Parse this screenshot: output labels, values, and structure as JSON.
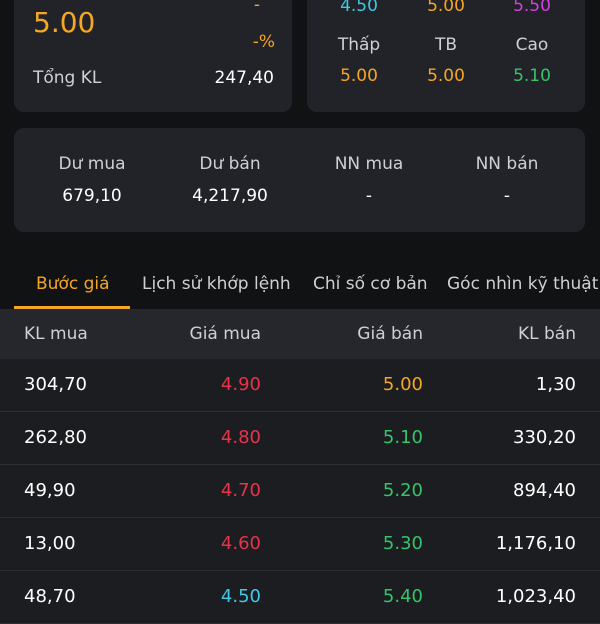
{
  "price_card": {
    "price": "5.00",
    "change": "-",
    "change_pct": "-%",
    "volume_label": "Tổng KL",
    "volume": "247,40"
  },
  "range_card": {
    "top_values": [
      "4.50",
      "5.00",
      "5.50"
    ],
    "labels": [
      "Thấp",
      "TB",
      "Cao"
    ],
    "values": [
      "5.00",
      "5.00",
      "5.10"
    ]
  },
  "summary": [
    {
      "label": "Dư mua",
      "value": "679,10"
    },
    {
      "label": "Dư bán",
      "value": "4,217,90"
    },
    {
      "label": "NN mua",
      "value": "-"
    },
    {
      "label": "NN bán",
      "value": "-"
    }
  ],
  "tabs": [
    "Bước giá",
    "Lịch sử khớp lệnh",
    "Chỉ số cơ bản",
    "Góc nhìn kỹ thuật"
  ],
  "order_book": {
    "headers": [
      "KL mua",
      "Giá mua",
      "Giá bán",
      "KL bán"
    ],
    "rows": [
      [
        "304,70",
        "4.90",
        "5.00",
        "1,30"
      ],
      [
        "262,80",
        "4.80",
        "5.10",
        "330,20"
      ],
      [
        "49,90",
        "4.70",
        "5.20",
        "894,40"
      ],
      [
        "13,00",
        "4.60",
        "5.30",
        "1,176,10"
      ],
      [
        "48,70",
        "4.50",
        "5.40",
        "1,023,40"
      ]
    ]
  }
}
